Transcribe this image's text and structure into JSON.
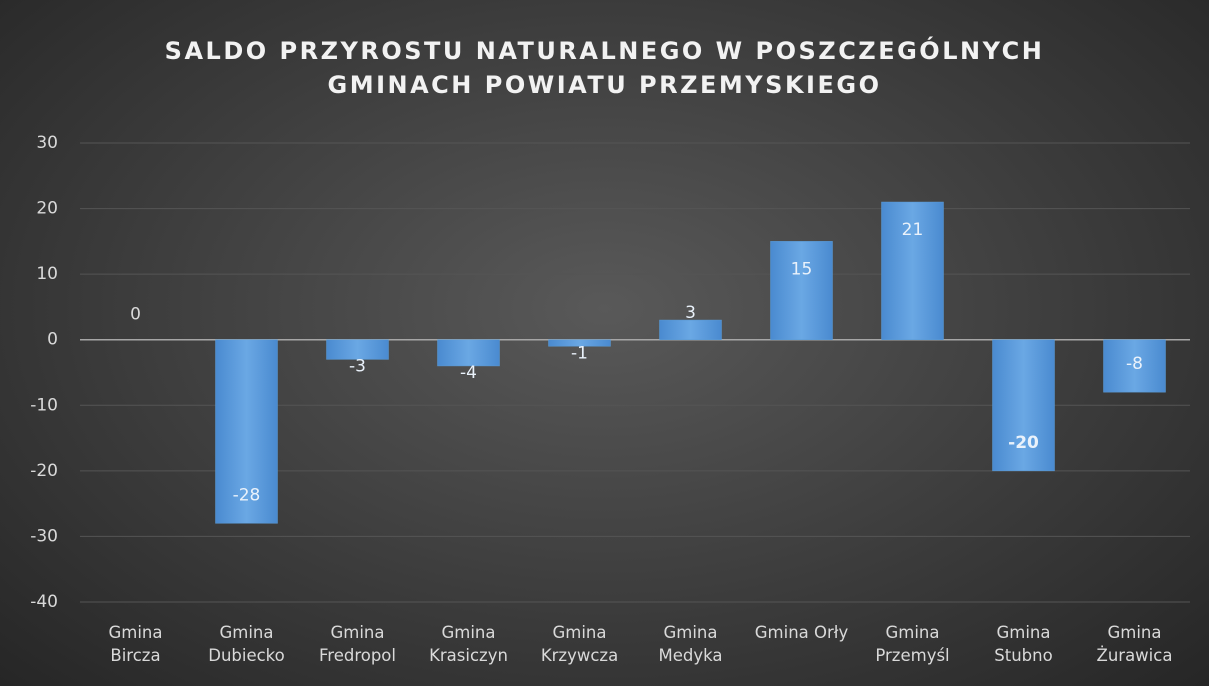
{
  "chart_data": {
    "type": "bar",
    "title": "SALDO PRZYROSTU NATURALNEGO W POSZCZEGÓLNYCH\nGMINACH POWIATU PRZEMYSKIEGO",
    "categories": [
      "Gmina\nBircza",
      "Gmina\nDubiecko",
      "Gmina\nFredropol",
      "Gmina\nKrasiczyn",
      "Gmina\nKrzywcza",
      "Gmina\nMedyka",
      "Gmina Orły",
      "Gmina\nPrzemyśl",
      "Gmina\nStubno",
      "Gmina\nŻurawica"
    ],
    "values": [
      0,
      -28,
      -3,
      -4,
      -1,
      3,
      15,
      21,
      -20,
      -8
    ],
    "color": "#5b9bd5",
    "ylim": [
      -40,
      30
    ],
    "yticks": [
      -40,
      -30,
      -20,
      -10,
      0,
      10,
      20,
      30
    ],
    "grid": true
  }
}
